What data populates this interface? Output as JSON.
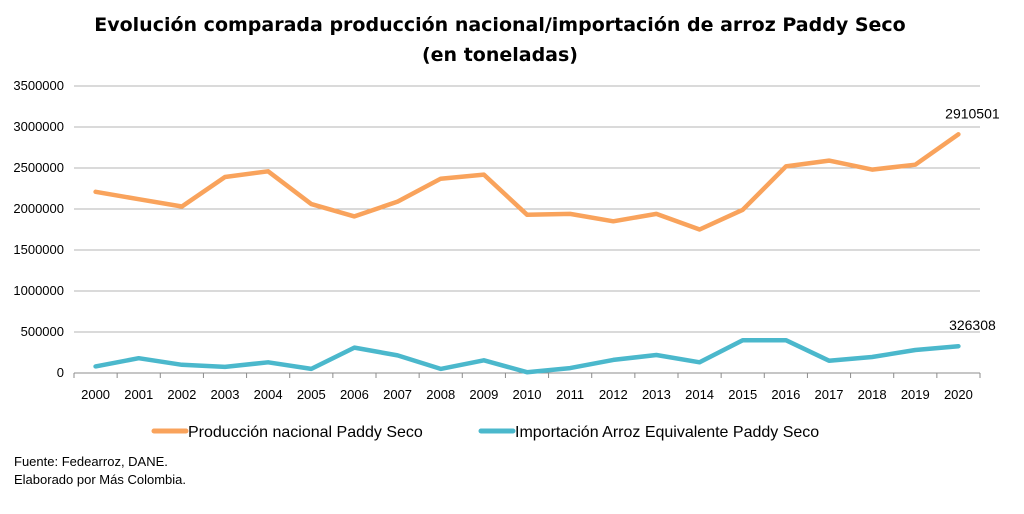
{
  "chart_data": {
    "type": "line",
    "title": "Evolución comparada producción nacional/importación de arroz Paddy Seco",
    "subtitle": "(en toneladas)",
    "xlabel": "",
    "ylabel": "",
    "ylim": [
      0,
      3500000
    ],
    "yticks": [
      "0",
      "500000",
      "1000000",
      "1500000",
      "2000000",
      "2500000",
      "3000000",
      "3500000"
    ],
    "grid": true,
    "legend_position": "bottom",
    "categories": [
      "2000",
      "2001",
      "2002",
      "2003",
      "2004",
      "2005",
      "2006",
      "2007",
      "2008",
      "2009",
      "2010",
      "2011",
      "2012",
      "2013",
      "2014",
      "2015",
      "2016",
      "2017",
      "2018",
      "2019",
      "2020"
    ],
    "series": [
      {
        "name": "Producción nacional Paddy Seco",
        "color": "#F9A35C",
        "values": [
          2210000,
          2120000,
          2030000,
          2390000,
          2460000,
          2060000,
          1910000,
          2090000,
          2370000,
          2420000,
          1930000,
          1940000,
          1850000,
          1940000,
          1750000,
          1990000,
          2520000,
          2590000,
          2480000,
          2540000,
          2910501
        ]
      },
      {
        "name": "Importación Arroz Equivalente Paddy Seco",
        "color": "#4BB8CC",
        "values": [
          80000,
          180000,
          100000,
          75000,
          130000,
          50000,
          310000,
          215000,
          50000,
          155000,
          10000,
          60000,
          160000,
          220000,
          130000,
          400000,
          400000,
          150000,
          195000,
          280000,
          326308
        ]
      }
    ],
    "annotations": [
      {
        "series": 0,
        "index": 20,
        "text": "2910501"
      },
      {
        "series": 1,
        "index": 20,
        "text": "326308"
      }
    ]
  },
  "source": {
    "line1": "Fuente: Fedearroz, DANE.",
    "line2": "Elaborado por Más Colombia."
  }
}
